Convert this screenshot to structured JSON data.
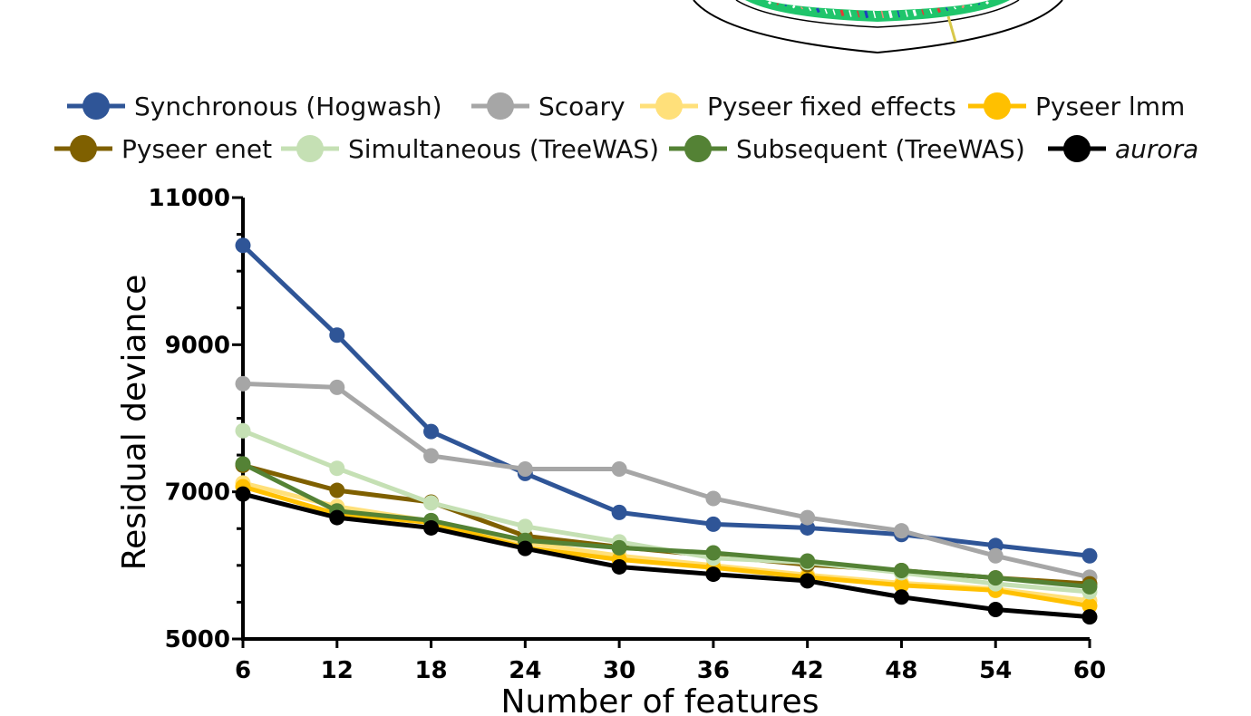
{
  "colors": {
    "ring_outer": "#000000",
    "ring_green": "#1fc56b",
    "ring_accent_red": "#e53935",
    "ring_accent_blue": "#1e3fbf",
    "ring_accent_yellow": "#d8c84a",
    "ring_accent_salmon": "#f08a72"
  },
  "chart_data": {
    "type": "line",
    "xlabel": "Number of features",
    "ylabel": "Residual deviance",
    "x": [
      6,
      12,
      18,
      24,
      30,
      36,
      42,
      48,
      54,
      60
    ],
    "xlim": [
      6,
      60
    ],
    "ylim": [
      5000,
      11000
    ],
    "yticks": [
      5000,
      7000,
      9000,
      11000
    ],
    "yminor_step": 500,
    "grid": false,
    "legend_position": "top",
    "series": [
      {
        "name": "Synchronous (Hogwash)",
        "italic": false,
        "color": "#2f5597",
        "values": [
          10350,
          9130,
          7820,
          7250,
          6720,
          6560,
          6510,
          6420,
          6270,
          6130
        ]
      },
      {
        "name": "Scoary",
        "italic": false,
        "color": "#a6a6a6",
        "values": [
          8470,
          8420,
          7490,
          7310,
          7310,
          6910,
          6650,
          6470,
          6130,
          5840
        ]
      },
      {
        "name": "Pyseer fixed effects",
        "italic": false,
        "color": "#ffe07a",
        "values": [
          7120,
          6800,
          6600,
          6310,
          6130,
          6000,
          5870,
          5760,
          5680,
          5520
        ]
      },
      {
        "name": "Pyseer lmm",
        "italic": false,
        "color": "#ffc000",
        "values": [
          7070,
          6700,
          6580,
          6240,
          6080,
          5970,
          5840,
          5730,
          5660,
          5450
        ]
      },
      {
        "name": "Pyseer enet",
        "italic": false,
        "color": "#7f6000",
        "values": [
          7360,
          7020,
          6860,
          6400,
          6250,
          6130,
          6010,
          5930,
          5830,
          5750
        ]
      },
      {
        "name": "Simultaneous (TreeWAS)",
        "italic": false,
        "color": "#c5e0b4",
        "values": [
          7830,
          7320,
          6850,
          6530,
          6320,
          6100,
          6040,
          5900,
          5750,
          5640
        ]
      },
      {
        "name": "Subsequent (TreeWAS)",
        "italic": false,
        "color": "#548235",
        "values": [
          7380,
          6740,
          6610,
          6340,
          6240,
          6170,
          6060,
          5930,
          5830,
          5710
        ]
      },
      {
        "name": "aurora",
        "italic": true,
        "color": "#000000",
        "values": [
          6970,
          6650,
          6510,
          6230,
          5980,
          5880,
          5790,
          5570,
          5400,
          5300
        ]
      }
    ]
  }
}
